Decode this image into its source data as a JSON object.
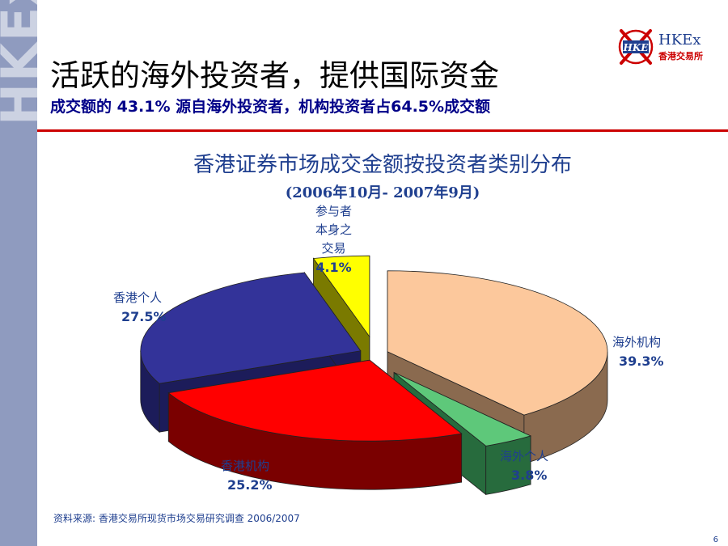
{
  "sidebar": {
    "logo_text": "HKEx"
  },
  "header": {
    "title": "活跃的海外投资者，提供国际资金",
    "subtitle": "成交额的 43.1% 源自海外投资者，机构投资者占64.5%成交额"
  },
  "brand": {
    "mark": "HKE",
    "name_en": "HKEx",
    "name_zh": "香港交易所",
    "accent": "#cc0000"
  },
  "chart_data": {
    "type": "pie",
    "title": "香港证券市场成交金额按投资者类别分布",
    "subtitle": "(2006年10月- 2007年9月)",
    "unit": "%",
    "slices": [
      {
        "label": "海外机构",
        "value": 39.3,
        "display": "39.3%",
        "color": "#fcc89c",
        "side_color": "#8a6a4f"
      },
      {
        "label": "海外个人",
        "value": 3.8,
        "display": "3.8%",
        "color": "#5ec87a",
        "side_color": "#276b3d"
      },
      {
        "label": "香港机构",
        "value": 25.2,
        "display": "25.2%",
        "color": "#ff0000",
        "side_color": "#7a0000"
      },
      {
        "label": "香港个人",
        "value": 27.5,
        "display": "27.5%",
        "color": "#333399",
        "side_color": "#1c1c5a"
      },
      {
        "label": "参与者本身之交易",
        "label_lines": [
          "参与者",
          "本身之",
          "交易"
        ],
        "value": 4.1,
        "display": "4.1%",
        "color": "#ffff00",
        "side_color": "#7a7a00"
      }
    ]
  },
  "footer": {
    "source": "资料来源: 香港交易所现货市场交易研究调查 2006/2007",
    "page_number": "6"
  }
}
